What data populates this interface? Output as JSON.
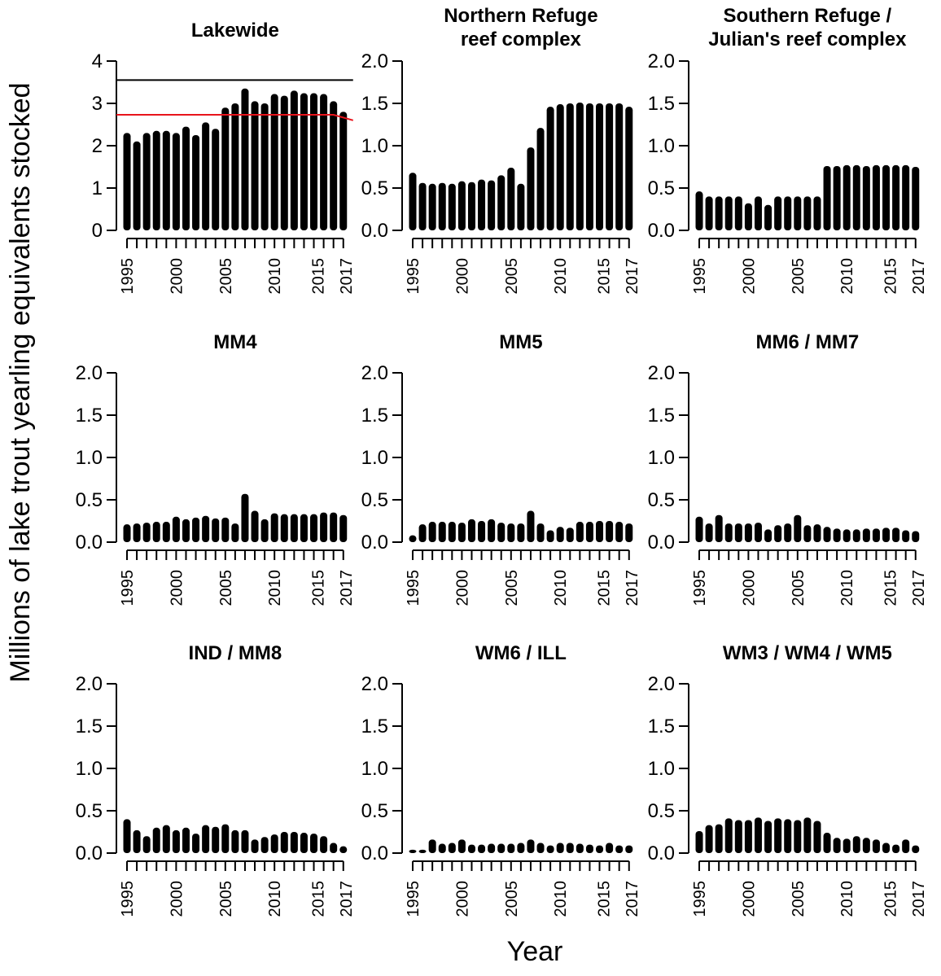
{
  "figure": {
    "ylabel": "Millions of lake trout yearling equivalents stocked",
    "xlabel": "Year"
  },
  "chart_data": [
    {
      "type": "bar",
      "title": [
        "Lakewide"
      ],
      "x": [
        1995,
        1996,
        1997,
        1998,
        1999,
        2000,
        2001,
        2002,
        2003,
        2004,
        2005,
        2006,
        2007,
        2008,
        2009,
        2010,
        2011,
        2012,
        2013,
        2014,
        2015,
        2016,
        2017
      ],
      "values": [
        2.3,
        2.1,
        2.3,
        2.35,
        2.35,
        2.3,
        2.45,
        2.25,
        2.55,
        2.4,
        2.9,
        3.0,
        3.35,
        3.05,
        3.0,
        3.22,
        3.18,
        3.3,
        3.24,
        3.24,
        3.22,
        3.05,
        2.8
      ],
      "ylim": [
        0,
        4
      ],
      "yticks": [
        "0",
        "1",
        "2",
        "3",
        "4"
      ],
      "xticks": [
        "1995",
        "2000",
        "2005",
        "2010",
        "2015",
        "2017"
      ],
      "reference_lines": [
        {
          "color": "#000000",
          "values": [
            3.55,
            3.55,
            3.55,
            3.55,
            3.55,
            3.55,
            3.55,
            3.55,
            3.55,
            3.55,
            3.55,
            3.55,
            3.55,
            3.55,
            3.55,
            3.55,
            3.55,
            3.55,
            3.55,
            3.55,
            3.55,
            3.55,
            3.55
          ]
        },
        {
          "color": "#e8141c",
          "values": [
            2.73,
            2.73,
            2.73,
            2.73,
            2.73,
            2.73,
            2.73,
            2.73,
            2.73,
            2.73,
            2.73,
            2.73,
            2.73,
            2.73,
            2.73,
            2.73,
            2.73,
            2.73,
            2.73,
            2.73,
            2.73,
            2.73,
            2.6
          ]
        }
      ],
      "bar_color": "#000000"
    },
    {
      "type": "bar",
      "title": [
        "Northern Refuge",
        "reef complex"
      ],
      "x": [
        1995,
        1996,
        1997,
        1998,
        1999,
        2000,
        2001,
        2002,
        2003,
        2004,
        2005,
        2006,
        2007,
        2008,
        2009,
        2010,
        2011,
        2012,
        2013,
        2014,
        2015,
        2016,
        2017
      ],
      "values": [
        0.68,
        0.56,
        0.55,
        0.56,
        0.55,
        0.58,
        0.57,
        0.6,
        0.59,
        0.65,
        0.74,
        0.55,
        0.98,
        1.21,
        1.46,
        1.49,
        1.5,
        1.51,
        1.5,
        1.5,
        1.5,
        1.5,
        1.46
      ],
      "ylim": [
        0,
        2
      ],
      "yticks": [
        "0.0",
        "0.5",
        "1.0",
        "1.5",
        "2.0"
      ],
      "xticks": [
        "1995",
        "2000",
        "2005",
        "2010",
        "2015",
        "2017"
      ],
      "bar_color": "#000000"
    },
    {
      "type": "bar",
      "title": [
        "Southern Refuge /",
        "Julian's reef complex"
      ],
      "x": [
        1995,
        1996,
        1997,
        1998,
        1999,
        2000,
        2001,
        2002,
        2003,
        2004,
        2005,
        2006,
        2007,
        2008,
        2009,
        2010,
        2011,
        2012,
        2013,
        2014,
        2015,
        2016,
        2017
      ],
      "values": [
        0.46,
        0.4,
        0.4,
        0.4,
        0.4,
        0.32,
        0.4,
        0.3,
        0.4,
        0.4,
        0.4,
        0.4,
        0.4,
        0.76,
        0.76,
        0.77,
        0.77,
        0.76,
        0.77,
        0.77,
        0.77,
        0.77,
        0.75
      ],
      "ylim": [
        0,
        2
      ],
      "yticks": [
        "0.0",
        "0.5",
        "1.0",
        "1.5",
        "2.0"
      ],
      "xticks": [
        "1995",
        "2000",
        "2005",
        "2010",
        "2015",
        "2017"
      ],
      "bar_color": "#000000"
    },
    {
      "type": "bar",
      "title": [
        "MM4"
      ],
      "x": [
        1995,
        1996,
        1997,
        1998,
        1999,
        2000,
        2001,
        2002,
        2003,
        2004,
        2005,
        2006,
        2007,
        2008,
        2009,
        2010,
        2011,
        2012,
        2013,
        2014,
        2015,
        2016,
        2017
      ],
      "values": [
        0.21,
        0.22,
        0.23,
        0.24,
        0.24,
        0.3,
        0.27,
        0.29,
        0.31,
        0.28,
        0.29,
        0.22,
        0.57,
        0.37,
        0.27,
        0.34,
        0.33,
        0.33,
        0.33,
        0.33,
        0.35,
        0.35,
        0.32
      ],
      "ylim": [
        0,
        2
      ],
      "yticks": [
        "0.0",
        "0.5",
        "1.0",
        "1.5",
        "2.0"
      ],
      "xticks": [
        "1995",
        "2000",
        "2005",
        "2010",
        "2015",
        "2017"
      ],
      "bar_color": "#000000"
    },
    {
      "type": "bar",
      "title": [
        "MM5"
      ],
      "x": [
        1995,
        1996,
        1997,
        1998,
        1999,
        2000,
        2001,
        2002,
        2003,
        2004,
        2005,
        2006,
        2007,
        2008,
        2009,
        2010,
        2011,
        2012,
        2013,
        2014,
        2015,
        2016,
        2017
      ],
      "values": [
        0.08,
        0.21,
        0.24,
        0.24,
        0.24,
        0.23,
        0.27,
        0.25,
        0.27,
        0.23,
        0.22,
        0.22,
        0.37,
        0.22,
        0.14,
        0.18,
        0.17,
        0.24,
        0.24,
        0.25,
        0.25,
        0.24,
        0.22
      ],
      "ylim": [
        0,
        2
      ],
      "yticks": [
        "0.0",
        "0.5",
        "1.0",
        "1.5",
        "2.0"
      ],
      "xticks": [
        "1995",
        "2000",
        "2005",
        "2010",
        "2015",
        "2017"
      ],
      "bar_color": "#000000"
    },
    {
      "type": "bar",
      "title": [
        "MM6 / MM7"
      ],
      "x": [
        1995,
        1996,
        1997,
        1998,
        1999,
        2000,
        2001,
        2002,
        2003,
        2004,
        2005,
        2006,
        2007,
        2008,
        2009,
        2010,
        2011,
        2012,
        2013,
        2014,
        2015,
        2016,
        2017
      ],
      "values": [
        0.3,
        0.22,
        0.32,
        0.22,
        0.22,
        0.22,
        0.23,
        0.15,
        0.2,
        0.22,
        0.32,
        0.2,
        0.21,
        0.18,
        0.16,
        0.15,
        0.15,
        0.16,
        0.16,
        0.17,
        0.17,
        0.14,
        0.13
      ],
      "ylim": [
        0,
        2
      ],
      "yticks": [
        "0.0",
        "0.5",
        "1.0",
        "1.5",
        "2.0"
      ],
      "xticks": [
        "1995",
        "2000",
        "2005",
        "2010",
        "2015",
        "2017"
      ],
      "bar_color": "#000000"
    },
    {
      "type": "bar",
      "title": [
        "IND / MM8"
      ],
      "x": [
        1995,
        1996,
        1997,
        1998,
        1999,
        2000,
        2001,
        2002,
        2003,
        2004,
        2005,
        2006,
        2007,
        2008,
        2009,
        2010,
        2011,
        2012,
        2013,
        2014,
        2015,
        2016,
        2017
      ],
      "values": [
        0.4,
        0.27,
        0.2,
        0.3,
        0.33,
        0.27,
        0.3,
        0.23,
        0.33,
        0.31,
        0.34,
        0.27,
        0.27,
        0.16,
        0.19,
        0.22,
        0.25,
        0.25,
        0.24,
        0.23,
        0.2,
        0.12,
        0.08
      ],
      "ylim": [
        0,
        2
      ],
      "yticks": [
        "0.0",
        "0.5",
        "1.0",
        "1.5",
        "2.0"
      ],
      "xticks": [
        "1995",
        "2000",
        "2005",
        "2010",
        "2015",
        "2017"
      ],
      "bar_color": "#000000"
    },
    {
      "type": "bar",
      "title": [
        "WM6 / ILL"
      ],
      "x": [
        1995,
        1996,
        1997,
        1998,
        1999,
        2000,
        2001,
        2002,
        2003,
        2004,
        2005,
        2006,
        2007,
        2008,
        2009,
        2010,
        2011,
        2012,
        2013,
        2014,
        2015,
        2016,
        2017
      ],
      "values": [
        0.04,
        0.04,
        0.16,
        0.11,
        0.12,
        0.16,
        0.1,
        0.1,
        0.11,
        0.11,
        0.11,
        0.12,
        0.16,
        0.12,
        0.09,
        0.12,
        0.12,
        0.11,
        0.1,
        0.09,
        0.12,
        0.09,
        0.09
      ],
      "ylim": [
        0,
        2
      ],
      "yticks": [
        "0.0",
        "0.5",
        "1.0",
        "1.5",
        "2.0"
      ],
      "xticks": [
        "1995",
        "2000",
        "2005",
        "2010",
        "2015",
        "2017"
      ],
      "bar_color": "#000000"
    },
    {
      "type": "bar",
      "title": [
        "WM3 / WM4 / WM5"
      ],
      "x": [
        1995,
        1996,
        1997,
        1998,
        1999,
        2000,
        2001,
        2002,
        2003,
        2004,
        2005,
        2006,
        2007,
        2008,
        2009,
        2010,
        2011,
        2012,
        2013,
        2014,
        2015,
        2016,
        2017
      ],
      "values": [
        0.26,
        0.33,
        0.34,
        0.41,
        0.39,
        0.39,
        0.42,
        0.38,
        0.41,
        0.4,
        0.39,
        0.42,
        0.38,
        0.24,
        0.18,
        0.17,
        0.2,
        0.18,
        0.16,
        0.12,
        0.1,
        0.16,
        0.09
      ],
      "ylim": [
        0,
        2
      ],
      "yticks": [
        "0.0",
        "0.5",
        "1.0",
        "1.5",
        "2.0"
      ],
      "xticks": [
        "1995",
        "2000",
        "2005",
        "2010",
        "2015",
        "2017"
      ],
      "bar_color": "#000000"
    }
  ]
}
